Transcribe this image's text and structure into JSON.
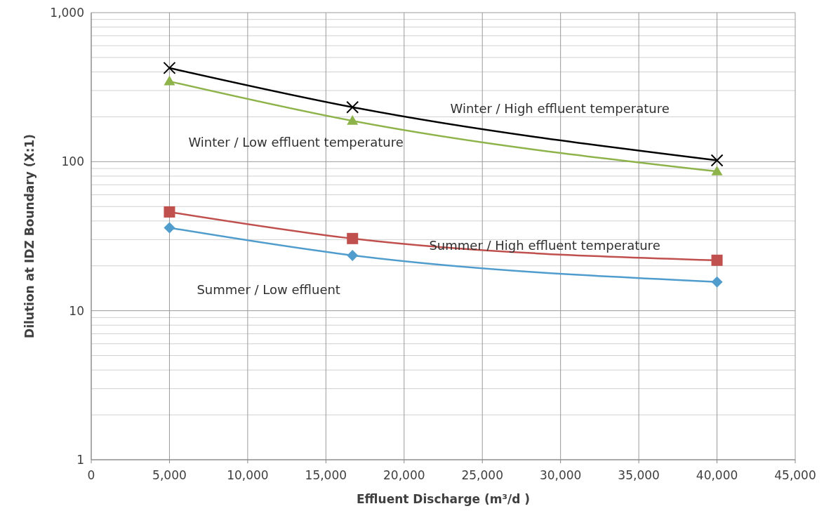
{
  "chart_data": {
    "type": "line",
    "xlabel": "Effluent Discharge (m³/d )",
    "ylabel": "Dilution at IDZ Boundary (X:1)",
    "log": "y",
    "grid": true,
    "line_style": "solid",
    "xlim": [
      0,
      45000
    ],
    "xticks": [
      0,
      {
        "value": 5000,
        "label": "5,000"
      },
      {
        "value": 10000,
        "label": "10,000"
      },
      {
        "value": 15000,
        "label": "15,000"
      },
      {
        "value": 20000,
        "label": "20,000"
      },
      {
        "value": 25000,
        "label": "25,000"
      },
      {
        "value": 30000,
        "label": "30,000"
      },
      {
        "value": 35000,
        "label": "35,000"
      },
      {
        "value": 40000,
        "label": "40,000"
      },
      {
        "value": 45000,
        "label": "45,000"
      }
    ],
    "ylim": [
      1,
      1000
    ],
    "yticks": [
      1,
      {
        "value": 2,
        "label": null
      },
      {
        "value": 3,
        "label": null
      },
      {
        "value": 4,
        "label": null
      },
      {
        "value": 5,
        "label": null
      },
      {
        "value": 6,
        "label": null
      },
      {
        "value": 7,
        "label": null
      },
      {
        "value": 8,
        "label": null
      },
      {
        "value": 9,
        "label": null
      },
      10,
      {
        "value": 20,
        "label": null
      },
      {
        "value": 30,
        "label": null
      },
      {
        "value": 40,
        "label": null
      },
      {
        "value": 50,
        "label": null
      },
      {
        "value": 60,
        "label": null
      },
      {
        "value": 70,
        "label": null
      },
      {
        "value": 80,
        "label": null
      },
      {
        "value": 90,
        "label": null
      },
      100,
      {
        "value": 200,
        "label": null
      },
      {
        "value": 300,
        "label": null
      },
      {
        "value": 400,
        "label": null
      },
      {
        "value": 500,
        "label": null
      },
      {
        "value": 600,
        "label": null
      },
      {
        "value": 700,
        "label": null
      },
      {
        "value": 800,
        "label": null
      },
      {
        "value": 900,
        "label": null
      },
      {
        "value": 1000,
        "label": "1,000"
      }
    ],
    "x": [
      5000,
      16700,
      40000
    ],
    "series": [
      {
        "color": "#000000",
        "marker": "cross",
        "values": [
          425,
          232,
          102
        ]
      },
      {
        "color": "#8db34a",
        "marker": "triangle",
        "values": [
          346,
          188,
          86
        ]
      },
      {
        "color": "#c0504d",
        "marker": "square",
        "values": [
          46,
          30.5,
          21.8
        ]
      },
      {
        "color": "#4f9ccd",
        "marker": "diamond",
        "values": [
          36,
          23.5,
          15.6
        ]
      }
    ],
    "annotations": [
      "Winter / High effluent temperature",
      "Winter / Low effluent temperature",
      "Summer / High effluent temperature",
      "Summer / Low effluent"
    ]
  }
}
